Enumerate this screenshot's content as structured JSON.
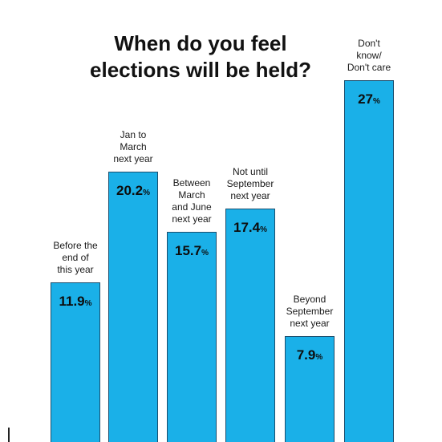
{
  "chart_data": {
    "type": "bar",
    "title_lines": [
      "When do you feel",
      "elections will be held?"
    ],
    "categories": [
      [
        "Before the",
        "end of",
        "this year"
      ],
      [
        "Jan to",
        "March",
        "next year"
      ],
      [
        "Between",
        "March",
        "and June",
        "next year"
      ],
      [
        "Not until",
        "September",
        "next year"
      ],
      [
        "Beyond",
        "September",
        "next year"
      ],
      [
        "Don't",
        "know/",
        "Don't care"
      ]
    ],
    "values": [
      11.9,
      20.2,
      15.7,
      17.4,
      7.9,
      27
    ],
    "value_labels": [
      "11.9",
      "20.2",
      "15.7",
      "17.4",
      "7.9",
      "27"
    ],
    "value_suffix": "%",
    "ylim": [
      0,
      30
    ],
    "grid": false,
    "legend": "none"
  },
  "colors": {
    "bar": "#1ab0e8",
    "bar_border": "#1a4e6e",
    "text": "#111111"
  }
}
